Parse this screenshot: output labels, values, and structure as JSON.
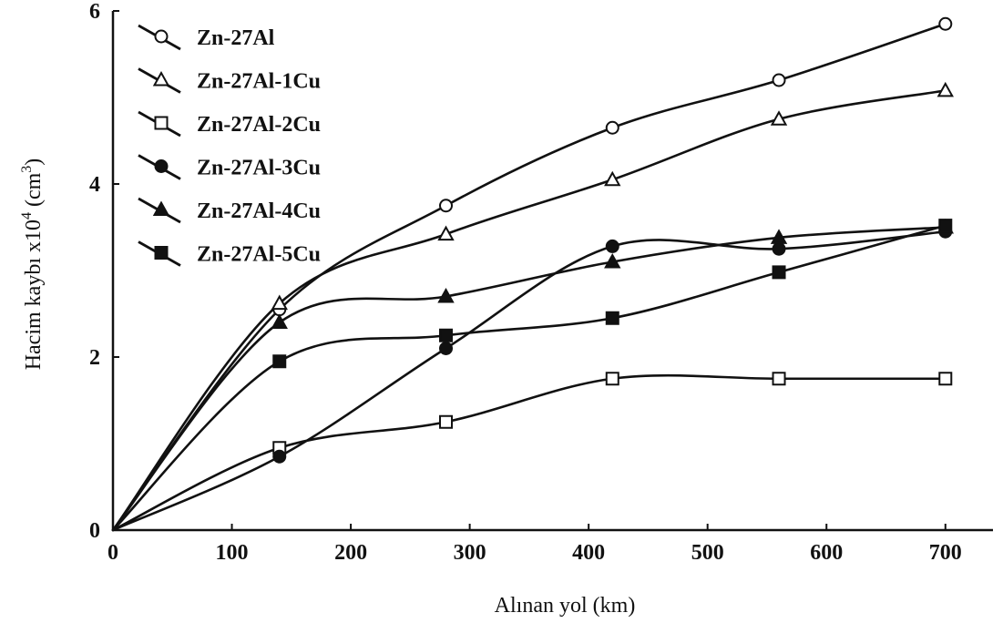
{
  "chart_data": {
    "type": "line",
    "title": "",
    "xlabel": "Alınan yol (km)",
    "ylabel_main": "Hacim kaybı x10",
    "ylabel_exp": "4",
    "ylabel_unit_open": " (cm",
    "ylabel_unit_exp": "3",
    "ylabel_unit_close": ")",
    "xlim": [
      0,
      740
    ],
    "ylim": [
      0,
      6
    ],
    "xticks": [
      0,
      100,
      200,
      300,
      400,
      500,
      600,
      700
    ],
    "yticks": [
      0,
      2,
      4,
      6
    ],
    "grid": false,
    "legend_position": "top-left",
    "series": [
      {
        "name": "Zn-27Al",
        "marker": "open-circle",
        "x": [
          0,
          140,
          280,
          420,
          560,
          700
        ],
        "y": [
          0,
          2.55,
          3.75,
          4.65,
          5.2,
          5.85
        ]
      },
      {
        "name": "Zn-27Al-1Cu",
        "marker": "open-triangle",
        "x": [
          0,
          140,
          280,
          420,
          560,
          700
        ],
        "y": [
          0,
          2.62,
          3.42,
          4.05,
          4.75,
          5.08
        ]
      },
      {
        "name": "Zn-27Al-2Cu",
        "marker": "open-square",
        "x": [
          0,
          140,
          280,
          420,
          560,
          700
        ],
        "y": [
          0,
          0.95,
          1.25,
          1.75,
          1.75,
          1.75
        ]
      },
      {
        "name": "Zn-27Al-3Cu",
        "marker": "filled-circle",
        "x": [
          0,
          140,
          280,
          420,
          560,
          700
        ],
        "y": [
          0,
          0.85,
          2.1,
          3.28,
          3.25,
          3.45
        ]
      },
      {
        "name": "Zn-27Al-4Cu",
        "marker": "filled-triangle",
        "x": [
          0,
          140,
          280,
          420,
          560,
          700
        ],
        "y": [
          0,
          2.4,
          2.7,
          3.1,
          3.38,
          3.5
        ]
      },
      {
        "name": "Zn-27Al-5Cu",
        "marker": "filled-square",
        "x": [
          0,
          140,
          280,
          420,
          560,
          700
        ],
        "y": [
          0,
          1.95,
          2.25,
          2.45,
          2.98,
          3.52
        ]
      }
    ]
  }
}
